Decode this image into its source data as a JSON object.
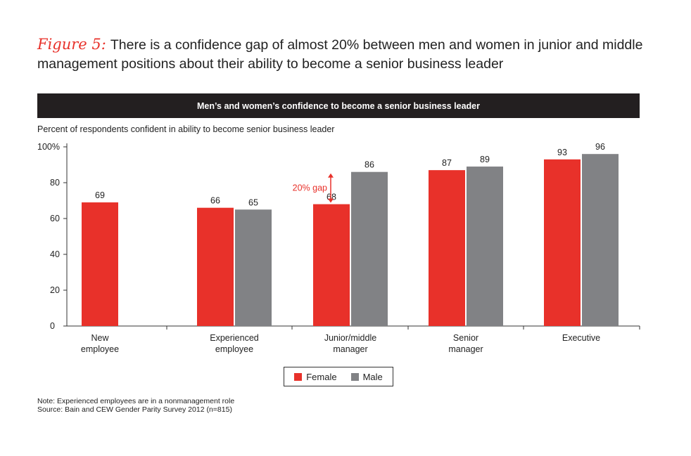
{
  "figure": {
    "label": "Figure 5:",
    "title": "There is a confidence gap of almost 20% between men and women in junior and middle management positions about their ability to become a senior business leader"
  },
  "chart_data": {
    "type": "bar",
    "title": "Men’s and women’s confidence to become a senior business leader",
    "ylabel": "Percent of respondents confident in ability to become senior business leader",
    "xlabel": "",
    "ylim": [
      0,
      100
    ],
    "yticks": [
      {
        "value": 0,
        "label": "0"
      },
      {
        "value": 20,
        "label": "20"
      },
      {
        "value": 40,
        "label": "40"
      },
      {
        "value": 60,
        "label": "60"
      },
      {
        "value": 80,
        "label": "80"
      },
      {
        "value": 100,
        "label": "100%"
      }
    ],
    "categories": [
      [
        "New",
        "employee"
      ],
      [
        "Experienced",
        "employee"
      ],
      [
        "Junior/middle",
        "manager"
      ],
      [
        "Senior",
        "manager"
      ],
      [
        "Executive"
      ]
    ],
    "series": [
      {
        "name": "Female",
        "color": "#e8312a",
        "values": [
          69,
          66,
          68,
          87,
          93
        ]
      },
      {
        "name": "Male",
        "color": "#818285",
        "values": [
          null,
          65,
          86,
          89,
          96
        ]
      }
    ],
    "annotation": {
      "text": "20% gap",
      "category_index": 2,
      "from": 68,
      "to": 86,
      "color": "#e8312a"
    },
    "legend": "bottom-center"
  },
  "notes": {
    "note": "Note: Experienced employees are in a nonmanagement role",
    "source": "Source: Bain and CEW Gender Parity Survey 2012 (n=815)"
  }
}
